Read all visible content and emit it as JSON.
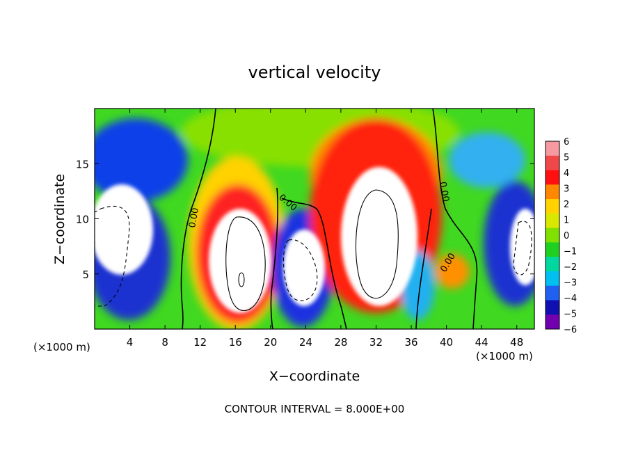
{
  "chart_data": {
    "type": "heatmap",
    "title": "vertical velocity",
    "xlabel": "X−coordinate",
    "ylabel": "Z−coordinate",
    "x_unit_left": "(×1000 m)",
    "x_unit_right": "(×1000 m)",
    "footer": "CONTOUR INTERVAL = 8.000E+00",
    "xlim": [
      0,
      50
    ],
    "ylim": [
      0,
      20
    ],
    "x_ticks": [
      {
        "value": 4,
        "label": "4"
      },
      {
        "value": 8,
        "label": "8"
      },
      {
        "value": 12,
        "label": "12"
      },
      {
        "value": 16,
        "label": "16"
      },
      {
        "value": 20,
        "label": "20"
      },
      {
        "value": 24,
        "label": "24"
      },
      {
        "value": 28,
        "label": "28"
      },
      {
        "value": 32,
        "label": "32"
      },
      {
        "value": 36,
        "label": "36"
      },
      {
        "value": 40,
        "label": "40"
      },
      {
        "value": 44,
        "label": "44"
      },
      {
        "value": 48,
        "label": "48"
      }
    ],
    "y_ticks": [
      {
        "value": 5,
        "label": "5"
      },
      {
        "value": 10,
        "label": "10"
      },
      {
        "value": 15,
        "label": "15"
      }
    ],
    "colorbar": {
      "min": -6,
      "max": 6,
      "labels": [
        "6",
        "5",
        "4",
        "3",
        "2",
        "1",
        "0",
        "−1",
        "−2",
        "−3",
        "−4",
        "−5",
        "−6"
      ],
      "colors": [
        "#f59aa0",
        "#f04848",
        "#ff1010",
        "#ff8800",
        "#ffd200",
        "#d8e800",
        "#80e000",
        "#20d020",
        "#00d8a0",
        "#00c0f0",
        "#2060f0",
        "#1010b0",
        "#7000b0"
      ]
    },
    "contour_labels": [
      "0.00",
      "0.00",
      "0.00",
      "0.00"
    ],
    "features": [
      {
        "kind": "updraft",
        "x": 17,
        "z": 7.5,
        "peak": 8
      },
      {
        "kind": "downdraft",
        "x": 23,
        "z": 5.5,
        "peak": -8
      },
      {
        "kind": "updraft",
        "x": 32,
        "z": 8.5,
        "peak": 8
      },
      {
        "kind": "downdraft",
        "x": 2.5,
        "z": 8,
        "peak": -8
      },
      {
        "kind": "downdraft",
        "x": 49,
        "z": 6,
        "peak": -8
      }
    ]
  }
}
